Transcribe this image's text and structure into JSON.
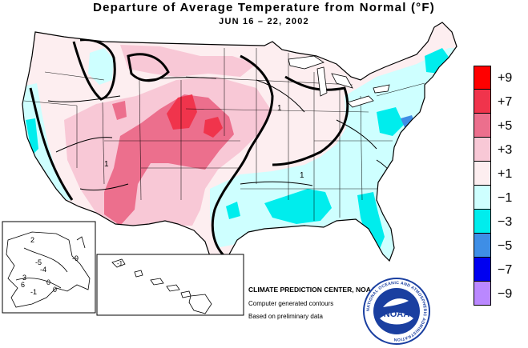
{
  "header": {
    "title": "Departure of Average Temperature from Normal (°F)",
    "subtitle": "JUN 16 – 22, 2002"
  },
  "legend": {
    "items": [
      {
        "label": "+9",
        "color": "#ff0000"
      },
      {
        "label": "+7",
        "color": "#f0344c"
      },
      {
        "label": "+5",
        "color": "#ec6f8d"
      },
      {
        "label": "+3",
        "color": "#f8c8d6"
      },
      {
        "label": "+1",
        "color": "#fdeef0"
      },
      {
        "label": "−1",
        "color": "#ceffff"
      },
      {
        "label": "−3",
        "color": "#00eded"
      },
      {
        "label": "−5",
        "color": "#3e8ee6"
      },
      {
        "label": "−7",
        "color": "#0000f0"
      },
      {
        "label": "−9",
        "color": "#ba88ff"
      }
    ]
  },
  "credits": {
    "line1": "CLIMATE PREDICTION CENTER, NOAA",
    "line2": "Computer generated contours",
    "line3": "Based on preliminary data"
  },
  "logo": {
    "text": "NOAA",
    "ring_text": "NATIONAL OCEANIC AND ATMOSPHERIC ADMINISTRATION"
  },
  "inset_labels": {
    "alaska": [
      "2",
      "-5",
      "3",
      "-4",
      "6",
      "0",
      "0",
      "-9",
      "-1"
    ],
    "hawaii": [
      "-1"
    ]
  },
  "map_labels": [
    "1",
    "1",
    "1"
  ]
}
